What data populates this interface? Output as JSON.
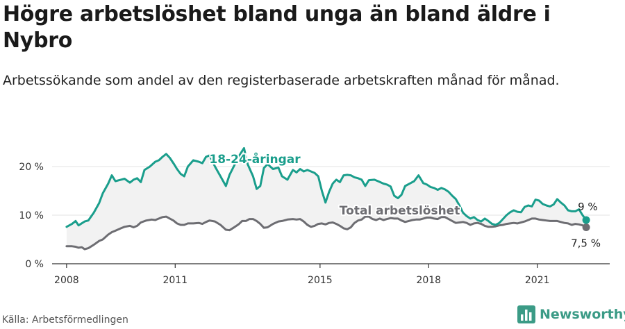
{
  "title": "Högre arbetslöshet bland unga än bland äldre i Nybro",
  "subtitle": "Arbetssökande som andel av den registerbaserade arbetskraften månad för månad.",
  "source": "Källa: Arbetsförmedlingen",
  "brand": "Newsworthy",
  "colors": {
    "youth": "#1a9e8c",
    "total": "#6d6d72",
    "band": "#f2f2f2",
    "grid": "#e3e3e3",
    "axis": "#333333"
  },
  "chart_data": {
    "type": "line",
    "xlim": [
      2007.6,
      2023.0
    ],
    "ylim": [
      0,
      24
    ],
    "x_ticks": [
      {
        "value": 2008,
        "label": "2008"
      },
      {
        "value": 2011,
        "label": "2011"
      },
      {
        "value": 2015,
        "label": "2015"
      },
      {
        "value": 2018,
        "label": "2018"
      },
      {
        "value": 2021,
        "label": "2021"
      }
    ],
    "y_ticks": [
      {
        "value": 0,
        "label": "0 %"
      },
      {
        "value": 10,
        "label": "10 %"
      },
      {
        "value": 20,
        "label": "20 %"
      }
    ],
    "series": [
      {
        "name": "18-24-åringar",
        "key": "youth",
        "end_label": "9 %",
        "points": [
          [
            2008.0,
            7.6
          ],
          [
            2008.15,
            8.2
          ],
          [
            2008.25,
            8.8
          ],
          [
            2008.33,
            7.9
          ],
          [
            2008.5,
            8.7
          ],
          [
            2008.6,
            8.9
          ],
          [
            2008.75,
            10.5
          ],
          [
            2008.9,
            12.5
          ],
          [
            2009.0,
            14.5
          ],
          [
            2009.15,
            16.5
          ],
          [
            2009.25,
            18.2
          ],
          [
            2009.35,
            17.0
          ],
          [
            2009.5,
            17.3
          ],
          [
            2009.6,
            17.5
          ],
          [
            2009.75,
            16.7
          ],
          [
            2009.85,
            17.3
          ],
          [
            2009.95,
            17.6
          ],
          [
            2010.05,
            16.8
          ],
          [
            2010.15,
            19.3
          ],
          [
            2010.3,
            20.0
          ],
          [
            2010.45,
            21.0
          ],
          [
            2010.55,
            21.3
          ],
          [
            2010.65,
            22.0
          ],
          [
            2010.75,
            22.6
          ],
          [
            2010.85,
            21.8
          ],
          [
            2010.95,
            20.7
          ],
          [
            2011.05,
            19.5
          ],
          [
            2011.15,
            18.5
          ],
          [
            2011.25,
            18.0
          ],
          [
            2011.35,
            20.0
          ],
          [
            2011.5,
            21.3
          ],
          [
            2011.65,
            21.0
          ],
          [
            2011.75,
            20.7
          ],
          [
            2011.85,
            22.0
          ],
          [
            2011.95,
            22.3
          ],
          [
            2012.1,
            20.0
          ],
          [
            2012.25,
            18.0
          ],
          [
            2012.4,
            16.0
          ],
          [
            2012.5,
            18.3
          ],
          [
            2012.65,
            20.5
          ],
          [
            2012.75,
            22.0
          ],
          [
            2012.85,
            23.2
          ],
          [
            2012.9,
            23.8
          ],
          [
            2013.0,
            20.5
          ],
          [
            2013.15,
            18.0
          ],
          [
            2013.25,
            15.4
          ],
          [
            2013.35,
            16.0
          ],
          [
            2013.45,
            19.7
          ],
          [
            2013.55,
            20.5
          ],
          [
            2013.7,
            19.5
          ],
          [
            2013.85,
            19.8
          ],
          [
            2013.95,
            18.0
          ],
          [
            2014.1,
            17.3
          ],
          [
            2014.25,
            19.3
          ],
          [
            2014.35,
            18.8
          ],
          [
            2014.45,
            19.5
          ],
          [
            2014.55,
            19.0
          ],
          [
            2014.65,
            19.3
          ],
          [
            2014.75,
            19.0
          ],
          [
            2014.85,
            18.7
          ],
          [
            2014.95,
            18.0
          ],
          [
            2015.05,
            15.0
          ],
          [
            2015.15,
            12.6
          ],
          [
            2015.25,
            14.8
          ],
          [
            2015.35,
            16.5
          ],
          [
            2015.45,
            17.3
          ],
          [
            2015.55,
            16.8
          ],
          [
            2015.65,
            18.2
          ],
          [
            2015.75,
            18.3
          ],
          [
            2015.85,
            18.2
          ],
          [
            2015.95,
            17.8
          ],
          [
            2016.05,
            17.6
          ],
          [
            2016.15,
            17.3
          ],
          [
            2016.25,
            16.0
          ],
          [
            2016.35,
            17.2
          ],
          [
            2016.5,
            17.3
          ],
          [
            2016.6,
            17.0
          ],
          [
            2016.75,
            16.5
          ],
          [
            2016.85,
            16.3
          ],
          [
            2016.95,
            15.9
          ],
          [
            2017.05,
            14.0
          ],
          [
            2017.15,
            13.5
          ],
          [
            2017.25,
            14.2
          ],
          [
            2017.35,
            16.0
          ],
          [
            2017.5,
            16.6
          ],
          [
            2017.6,
            17.0
          ],
          [
            2017.72,
            18.2
          ],
          [
            2017.85,
            16.6
          ],
          [
            2017.95,
            16.3
          ],
          [
            2018.05,
            15.8
          ],
          [
            2018.15,
            15.6
          ],
          [
            2018.25,
            15.2
          ],
          [
            2018.35,
            15.6
          ],
          [
            2018.45,
            15.3
          ],
          [
            2018.55,
            14.8
          ],
          [
            2018.65,
            14.0
          ],
          [
            2018.75,
            13.3
          ],
          [
            2018.85,
            12.0
          ],
          [
            2018.95,
            10.5
          ],
          [
            2019.05,
            9.8
          ],
          [
            2019.15,
            9.3
          ],
          [
            2019.25,
            9.6
          ],
          [
            2019.35,
            9.0
          ],
          [
            2019.45,
            8.7
          ],
          [
            2019.55,
            9.3
          ],
          [
            2019.65,
            8.8
          ],
          [
            2019.75,
            8.2
          ],
          [
            2019.85,
            8.0
          ],
          [
            2019.95,
            8.4
          ],
          [
            2020.05,
            9.2
          ],
          [
            2020.15,
            10.0
          ],
          [
            2020.25,
            10.6
          ],
          [
            2020.35,
            11.0
          ],
          [
            2020.45,
            10.7
          ],
          [
            2020.55,
            10.6
          ],
          [
            2020.65,
            11.7
          ],
          [
            2020.75,
            12.0
          ],
          [
            2020.85,
            11.8
          ],
          [
            2020.95,
            13.2
          ],
          [
            2021.05,
            13.0
          ],
          [
            2021.15,
            12.3
          ],
          [
            2021.25,
            12.0
          ],
          [
            2021.35,
            11.8
          ],
          [
            2021.45,
            12.2
          ],
          [
            2021.55,
            13.3
          ],
          [
            2021.65,
            12.6
          ],
          [
            2021.75,
            12.0
          ],
          [
            2021.85,
            11.0
          ],
          [
            2021.95,
            10.8
          ],
          [
            2022.05,
            10.8
          ],
          [
            2022.15,
            11.2
          ],
          [
            2022.25,
            10.0
          ],
          [
            2022.35,
            9.0
          ]
        ]
      },
      {
        "name": "Total arbetslöshet",
        "key": "total",
        "end_label": "7,5 %",
        "points": [
          [
            2008.0,
            3.6
          ],
          [
            2008.15,
            3.6
          ],
          [
            2008.25,
            3.5
          ],
          [
            2008.33,
            3.3
          ],
          [
            2008.42,
            3.4
          ],
          [
            2008.5,
            3.0
          ],
          [
            2008.6,
            3.2
          ],
          [
            2008.75,
            3.9
          ],
          [
            2008.9,
            4.7
          ],
          [
            2009.0,
            5.0
          ],
          [
            2009.15,
            6.0
          ],
          [
            2009.25,
            6.5
          ],
          [
            2009.35,
            6.8
          ],
          [
            2009.5,
            7.3
          ],
          [
            2009.6,
            7.6
          ],
          [
            2009.75,
            7.8
          ],
          [
            2009.85,
            7.5
          ],
          [
            2009.95,
            7.8
          ],
          [
            2010.05,
            8.5
          ],
          [
            2010.2,
            8.9
          ],
          [
            2010.35,
            9.1
          ],
          [
            2010.45,
            9.0
          ],
          [
            2010.55,
            9.3
          ],
          [
            2010.65,
            9.6
          ],
          [
            2010.75,
            9.7
          ],
          [
            2010.85,
            9.3
          ],
          [
            2010.95,
            8.9
          ],
          [
            2011.05,
            8.3
          ],
          [
            2011.15,
            8.0
          ],
          [
            2011.25,
            8.0
          ],
          [
            2011.35,
            8.3
          ],
          [
            2011.5,
            8.3
          ],
          [
            2011.65,
            8.4
          ],
          [
            2011.75,
            8.2
          ],
          [
            2011.85,
            8.6
          ],
          [
            2011.95,
            8.9
          ],
          [
            2012.1,
            8.7
          ],
          [
            2012.25,
            8.0
          ],
          [
            2012.4,
            7.0
          ],
          [
            2012.5,
            6.9
          ],
          [
            2012.65,
            7.6
          ],
          [
            2012.75,
            8.1
          ],
          [
            2012.85,
            8.8
          ],
          [
            2012.95,
            8.8
          ],
          [
            2013.05,
            9.2
          ],
          [
            2013.15,
            9.2
          ],
          [
            2013.25,
            8.8
          ],
          [
            2013.35,
            8.2
          ],
          [
            2013.45,
            7.4
          ],
          [
            2013.55,
            7.5
          ],
          [
            2013.7,
            8.2
          ],
          [
            2013.85,
            8.7
          ],
          [
            2013.95,
            8.8
          ],
          [
            2014.1,
            9.1
          ],
          [
            2014.25,
            9.2
          ],
          [
            2014.35,
            9.1
          ],
          [
            2014.45,
            9.2
          ],
          [
            2014.55,
            8.7
          ],
          [
            2014.65,
            8.0
          ],
          [
            2014.75,
            7.6
          ],
          [
            2014.85,
            7.8
          ],
          [
            2014.95,
            8.2
          ],
          [
            2015.05,
            8.3
          ],
          [
            2015.15,
            8.1
          ],
          [
            2015.25,
            8.4
          ],
          [
            2015.35,
            8.5
          ],
          [
            2015.45,
            8.2
          ],
          [
            2015.55,
            7.8
          ],
          [
            2015.65,
            7.3
          ],
          [
            2015.75,
            7.1
          ],
          [
            2015.85,
            7.5
          ],
          [
            2015.95,
            8.4
          ],
          [
            2016.05,
            8.9
          ],
          [
            2016.15,
            9.1
          ],
          [
            2016.25,
            9.7
          ],
          [
            2016.35,
            9.7
          ],
          [
            2016.45,
            9.2
          ],
          [
            2016.55,
            9.0
          ],
          [
            2016.65,
            9.3
          ],
          [
            2016.75,
            9.0
          ],
          [
            2016.85,
            9.2
          ],
          [
            2016.95,
            9.4
          ],
          [
            2017.05,
            9.3
          ],
          [
            2017.15,
            9.3
          ],
          [
            2017.25,
            8.9
          ],
          [
            2017.35,
            8.6
          ],
          [
            2017.45,
            8.8
          ],
          [
            2017.55,
            9.0
          ],
          [
            2017.65,
            9.1
          ],
          [
            2017.75,
            9.1
          ],
          [
            2017.85,
            9.3
          ],
          [
            2017.95,
            9.5
          ],
          [
            2018.05,
            9.5
          ],
          [
            2018.15,
            9.3
          ],
          [
            2018.25,
            9.2
          ],
          [
            2018.35,
            9.6
          ],
          [
            2018.45,
            9.6
          ],
          [
            2018.55,
            9.2
          ],
          [
            2018.65,
            8.8
          ],
          [
            2018.75,
            8.4
          ],
          [
            2018.85,
            8.5
          ],
          [
            2018.95,
            8.6
          ],
          [
            2019.05,
            8.4
          ],
          [
            2019.15,
            8.0
          ],
          [
            2019.25,
            8.3
          ],
          [
            2019.35,
            8.4
          ],
          [
            2019.45,
            8.2
          ],
          [
            2019.55,
            7.8
          ],
          [
            2019.65,
            7.6
          ],
          [
            2019.75,
            7.6
          ],
          [
            2019.85,
            7.7
          ],
          [
            2019.95,
            7.9
          ],
          [
            2020.05,
            8.0
          ],
          [
            2020.15,
            8.2
          ],
          [
            2020.25,
            8.3
          ],
          [
            2020.35,
            8.4
          ],
          [
            2020.45,
            8.3
          ],
          [
            2020.55,
            8.5
          ],
          [
            2020.65,
            8.7
          ],
          [
            2020.75,
            9.0
          ],
          [
            2020.85,
            9.3
          ],
          [
            2020.95,
            9.3
          ],
          [
            2021.05,
            9.1
          ],
          [
            2021.15,
            9.0
          ],
          [
            2021.25,
            8.9
          ],
          [
            2021.35,
            8.8
          ],
          [
            2021.45,
            8.8
          ],
          [
            2021.55,
            8.8
          ],
          [
            2021.65,
            8.6
          ],
          [
            2021.75,
            8.4
          ],
          [
            2021.85,
            8.3
          ],
          [
            2021.95,
            8.0
          ],
          [
            2022.05,
            8.2
          ],
          [
            2022.15,
            8.1
          ],
          [
            2022.25,
            7.9
          ],
          [
            2022.35,
            7.5
          ]
        ]
      }
    ],
    "band": true,
    "grid": true
  }
}
